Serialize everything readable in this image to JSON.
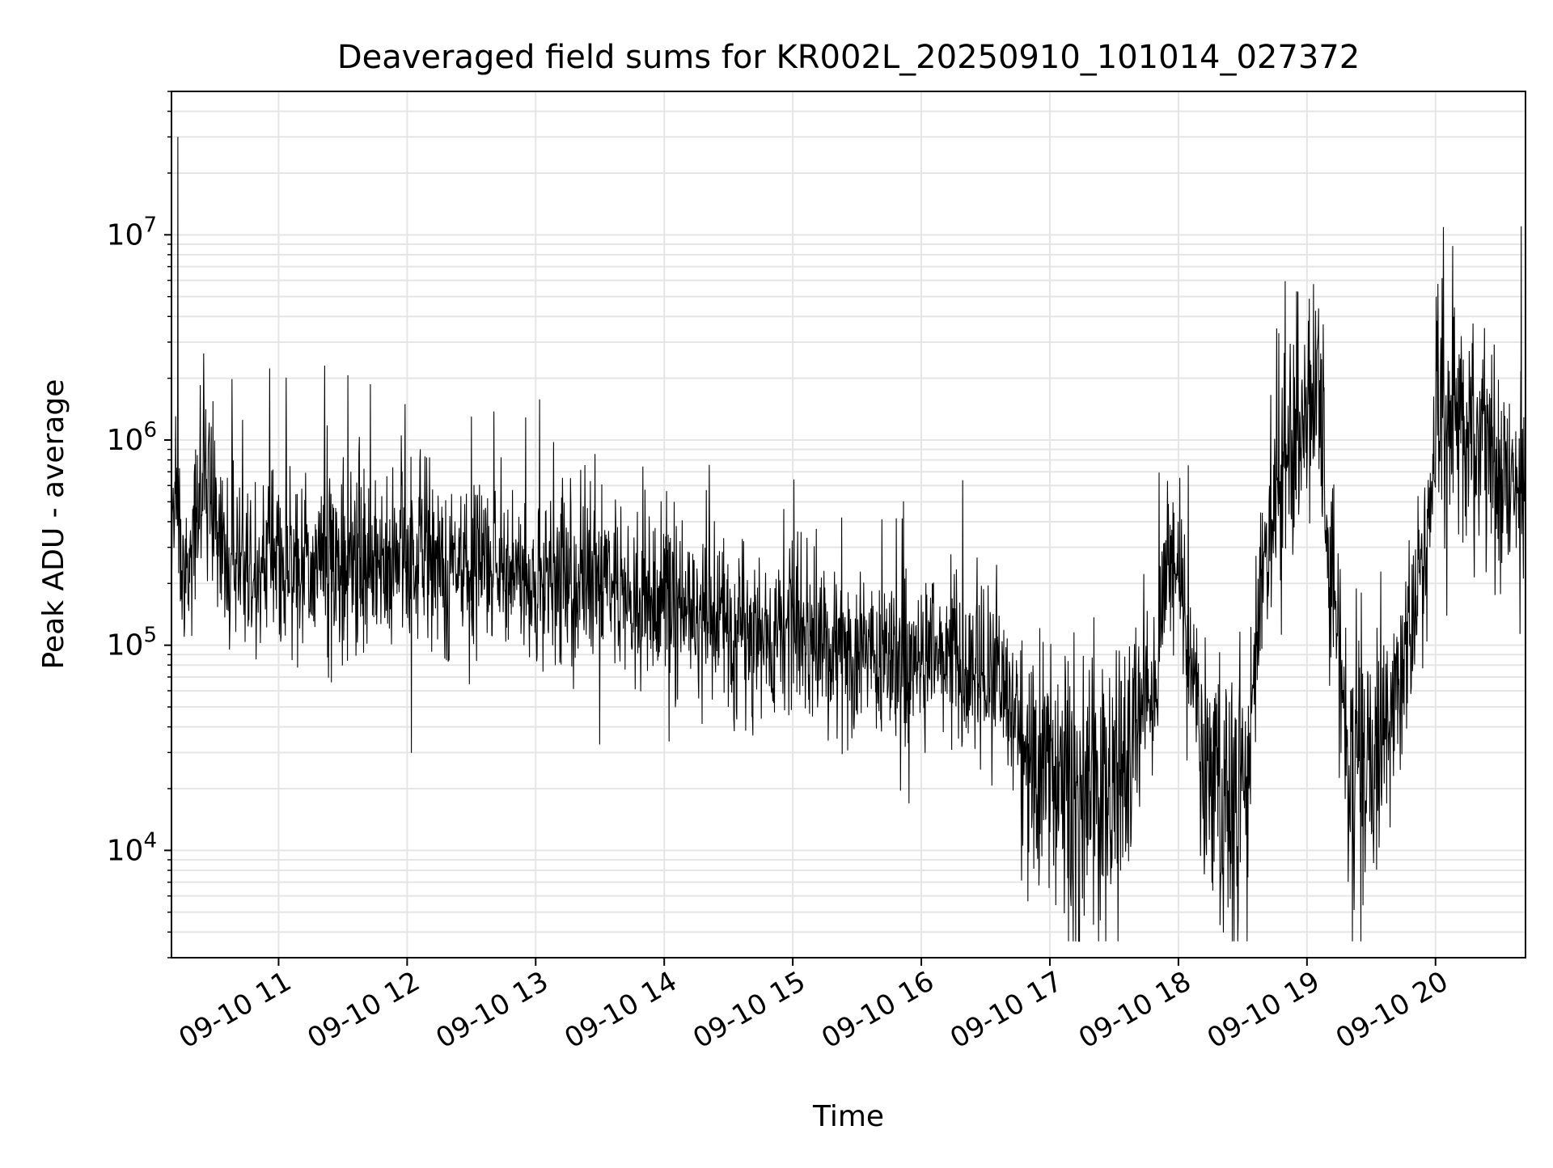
{
  "chart_data": {
    "type": "line",
    "title": "Deaveraged field sums for KR002L_20250910_101014_027372",
    "xlabel": "Time",
    "ylabel": "Peak ADU - average",
    "x_range": [
      "2025-09-10 10:10",
      "2025-09-10 20:42"
    ],
    "ylim": [
      3000,
      50000000
    ],
    "yscale": "log",
    "grid": true,
    "legend": "none",
    "line_color": "#000000",
    "grid_color": "#e5e5e5",
    "x_ticks": [
      {
        "t": "2025-09-10 11:00",
        "label": "09-10 11"
      },
      {
        "t": "2025-09-10 12:00",
        "label": "09-10 12"
      },
      {
        "t": "2025-09-10 13:00",
        "label": "09-10 13"
      },
      {
        "t": "2025-09-10 14:00",
        "label": "09-10 14"
      },
      {
        "t": "2025-09-10 15:00",
        "label": "09-10 15"
      },
      {
        "t": "2025-09-10 16:00",
        "label": "09-10 16"
      },
      {
        "t": "2025-09-10 17:00",
        "label": "09-10 17"
      },
      {
        "t": "2025-09-10 18:00",
        "label": "09-10 18"
      },
      {
        "t": "2025-09-10 19:00",
        "label": "09-10 19"
      },
      {
        "t": "2025-09-10 20:00",
        "label": "09-10 20"
      }
    ],
    "y_ticks": [
      {
        "value": 10000,
        "base": "10",
        "exp": "4"
      },
      {
        "value": 100000,
        "base": "10",
        "exp": "5"
      },
      {
        "value": 1000000,
        "base": "10",
        "exp": "6"
      },
      {
        "value": 10000000,
        "base": "10",
        "exp": "7"
      }
    ],
    "series": [
      {
        "x": [
          "2025-09-10 10:10",
          "2025-09-10 10:12",
          "2025-09-10 10:13",
          "2025-09-10 10:15",
          "2025-09-10 10:20",
          "2025-09-10 10:25",
          "2025-09-10 10:30",
          "2025-09-10 10:35",
          "2025-09-10 10:40",
          "2025-09-10 10:45",
          "2025-09-10 10:50",
          "2025-09-10 10:55",
          "2025-09-10 11:00",
          "2025-09-10 11:10",
          "2025-09-10 11:20",
          "2025-09-10 11:30",
          "2025-09-10 11:40",
          "2025-09-10 11:50",
          "2025-09-10 12:00",
          "2025-09-10 12:15",
          "2025-09-10 12:25",
          "2025-09-10 12:30",
          "2025-09-10 12:45",
          "2025-09-10 13:00",
          "2025-09-10 13:15",
          "2025-09-10 13:30",
          "2025-09-10 13:45",
          "2025-09-10 14:00",
          "2025-09-10 14:15",
          "2025-09-10 14:30",
          "2025-09-10 14:45",
          "2025-09-10 15:00",
          "2025-09-10 15:15",
          "2025-09-10 15:30",
          "2025-09-10 15:45",
          "2025-09-10 16:00",
          "2025-09-10 16:10",
          "2025-09-10 16:20",
          "2025-09-10 16:30",
          "2025-09-10 16:40",
          "2025-09-10 16:50",
          "2025-09-10 17:00",
          "2025-09-10 17:10",
          "2025-09-10 17:20",
          "2025-09-10 17:30",
          "2025-09-10 17:40",
          "2025-09-10 17:50",
          "2025-09-10 17:55",
          "2025-09-10 18:00",
          "2025-09-10 18:10",
          "2025-09-10 18:20",
          "2025-09-10 18:30",
          "2025-09-10 18:35",
          "2025-09-10 18:40",
          "2025-09-10 18:50",
          "2025-09-10 19:00",
          "2025-09-10 19:05",
          "2025-09-10 19:10",
          "2025-09-10 19:20",
          "2025-09-10 19:30",
          "2025-09-10 19:40",
          "2025-09-10 19:50",
          "2025-09-10 19:55",
          "2025-09-10 20:00",
          "2025-09-10 20:10",
          "2025-09-10 20:20",
          "2025-09-10 20:30",
          "2025-09-10 20:38",
          "2025-09-10 20:40",
          "2025-09-10 20:42"
        ],
        "values": [
          300000,
          600000,
          30000000,
          250000,
          300000,
          900000,
          350000,
          280000,
          260000,
          270000,
          250000,
          260000,
          270000,
          260000,
          250000,
          240000,
          260000,
          250000,
          250000,
          250000,
          230000,
          1300000,
          240000,
          220000,
          220000,
          220000,
          180000,
          160000,
          140000,
          130000,
          120000,
          120000,
          110000,
          100000,
          100000,
          90000,
          85000,
          80000,
          70000,
          60000,
          30000,
          20000,
          18000,
          15000,
          20000,
          40000,
          80000,
          300000,
          200000,
          40000,
          15000,
          15000,
          60000,
          300000,
          900000,
          1200000,
          2500000,
          300000,
          30000,
          20000,
          50000,
          150000,
          250000,
          1000000,
          1300000,
          1000000,
          600000,
          500000,
          11000000,
          600000
        ]
      }
    ]
  }
}
